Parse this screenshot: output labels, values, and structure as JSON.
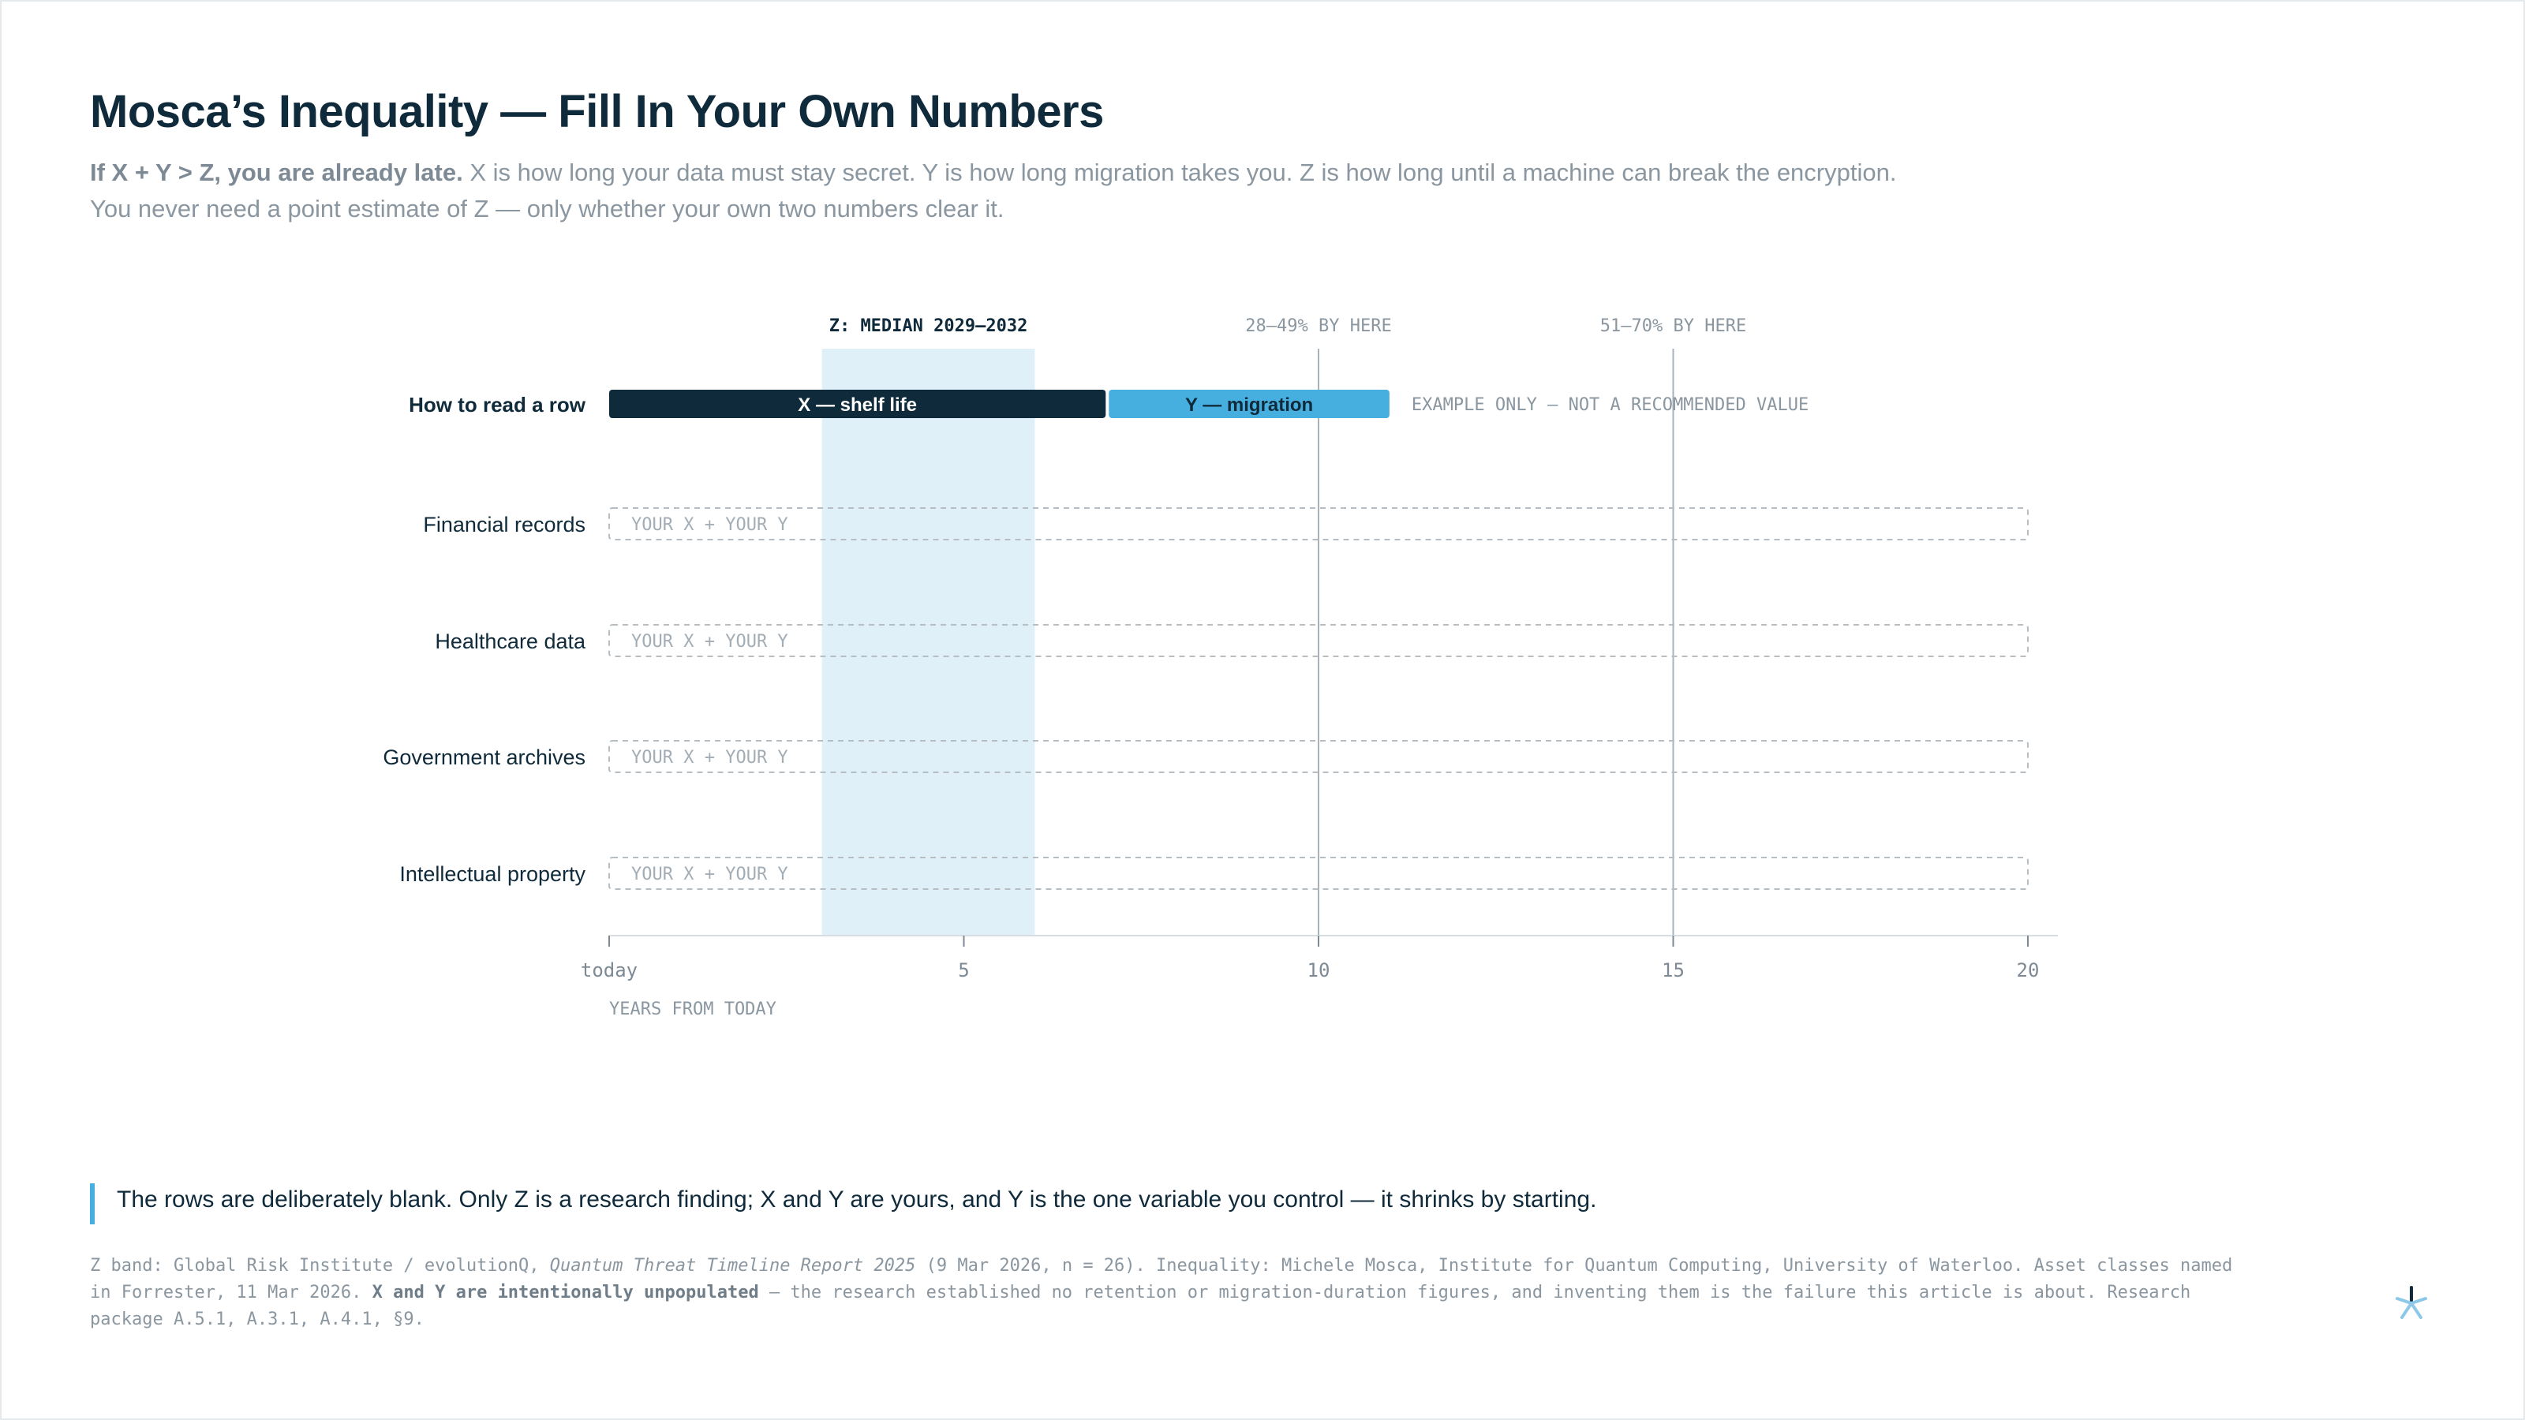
{
  "title": "Mosca’s Inequality — Fill In Your Own Numbers",
  "subtitle": {
    "lead": "If X + Y > Z, you are already late.",
    "line1": " X is how long your data must stay secret. Y is how long migration takes you. Z is how long until a machine can break the encryption.",
    "line2": "You never need a point estimate of Z — only whether your own two numbers clear it."
  },
  "chart_data": {
    "type": "bar",
    "orientation": "horizontal-stacked",
    "x_axis": {
      "min": 0,
      "max": 20,
      "ticks": [
        {
          "value": 0,
          "label": "today"
        },
        {
          "value": 5,
          "label": "5"
        },
        {
          "value": 10,
          "label": "10"
        },
        {
          "value": 15,
          "label": "15"
        },
        {
          "value": 20,
          "label": "20"
        }
      ],
      "label": "YEARS FROM TODAY"
    },
    "z_band": {
      "from": 3,
      "to": 6,
      "label": "Z: MEDIAN 2029–2032",
      "color": "#e0f0f9"
    },
    "reference_lines": [
      {
        "value": 10,
        "label": "28–49% BY HERE"
      },
      {
        "value": 15,
        "label": "51–70% BY HERE"
      }
    ],
    "example_row": {
      "label": "How to read a row",
      "segments": [
        {
          "label": "X — shelf life",
          "from": 0,
          "to": 7,
          "color": "#0f2a3a"
        },
        {
          "label": "Y — migration",
          "from": 7,
          "to": 11,
          "color": "#47aee0"
        }
      ],
      "note": "EXAMPLE ONLY — NOT A RECOMMENDED VALUE"
    },
    "categories": [
      "Financial records",
      "Healthcare data",
      "Government archives",
      "Intellectual property"
    ],
    "blank_row_placeholder": "YOUR X + YOUR Y",
    "blank_row_extent": [
      0,
      20
    ]
  },
  "callout": "The rows are deliberately blank. Only Z is a research finding; X and Y are yours, and Y is the one variable you control — it shrinks by starting.",
  "source": {
    "p1": "Z band: Global Risk Institute / evolutionQ, ",
    "report": "Quantum Threat Timeline Report 2025",
    "p2": " (9 Mar 2026, n = 26). Inequality: Michele Mosca, Institute for Quantum Computing, University of Waterloo. Asset classes named in Forrester, 11 Mar 2026. ",
    "bold": "X and Y are intentionally unpopulated",
    "p3": " — the research established no retention or migration-duration figures, and inventing them is the failure this article is about. Research package A.5.1, A.3.1, A.4.1, §9."
  },
  "colors": {
    "navy": "#0f2a3a",
    "blue": "#47aee0",
    "band": "#e0f0f9",
    "grid": "#a9b2b9",
    "muted": "#8a96a0"
  },
  "logo_icon": "asterisk-logo-icon"
}
